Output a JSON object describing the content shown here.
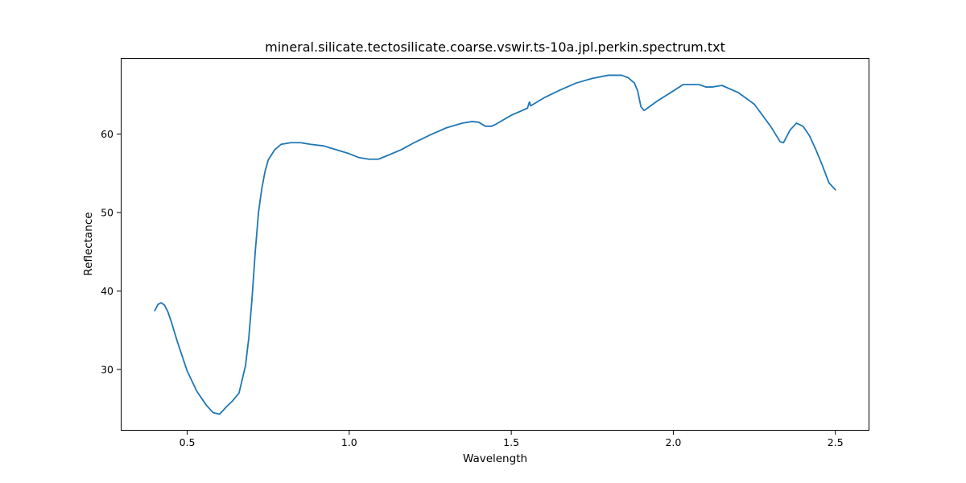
{
  "chart_data": {
    "type": "line",
    "title": "mineral.silicate.tectosilicate.coarse.vswir.ts-10a.jpl.perkin.spectrum.txt",
    "xlabel": "Wavelength",
    "ylabel": "Reflectance",
    "xlim": [
      0.295,
      2.605
    ],
    "ylim": [
      22.2,
      69.7
    ],
    "xticks": [
      0.5,
      1.0,
      1.5,
      2.0,
      2.5
    ],
    "xtick_labels": [
      "0.5",
      "1.0",
      "1.5",
      "2.0",
      "2.5"
    ],
    "yticks": [
      30,
      40,
      50,
      60
    ],
    "ytick_labels": [
      "30",
      "40",
      "50",
      "60"
    ],
    "grid": false,
    "legend": "none",
    "series": [
      {
        "color": "#1f77b4",
        "x": [
          0.4,
          0.41,
          0.42,
          0.43,
          0.44,
          0.45,
          0.47,
          0.5,
          0.53,
          0.56,
          0.58,
          0.6,
          0.62,
          0.64,
          0.66,
          0.68,
          0.69,
          0.7,
          0.71,
          0.72,
          0.73,
          0.74,
          0.75,
          0.77,
          0.79,
          0.82,
          0.85,
          0.88,
          0.92,
          0.96,
          1.0,
          1.03,
          1.06,
          1.09,
          1.12,
          1.16,
          1.2,
          1.25,
          1.3,
          1.35,
          1.38,
          1.4,
          1.42,
          1.44,
          1.45,
          1.5,
          1.55,
          1.556,
          1.56,
          1.6,
          1.65,
          1.7,
          1.75,
          1.8,
          1.84,
          1.86,
          1.88,
          1.89,
          1.9,
          1.91,
          1.92,
          1.95,
          2.0,
          2.03,
          2.05,
          2.08,
          2.1,
          2.12,
          2.15,
          2.2,
          2.25,
          2.3,
          2.33,
          2.34,
          2.36,
          2.38,
          2.4,
          2.42,
          2.44,
          2.46,
          2.48,
          2.5
        ],
        "y": [
          37.5,
          38.3,
          38.5,
          38.2,
          37.4,
          36.2,
          33.5,
          29.8,
          27.2,
          25.4,
          24.5,
          24.3,
          25.2,
          26.0,
          27.0,
          30.5,
          34.0,
          39.0,
          45.0,
          50.0,
          53.0,
          55.2,
          56.7,
          58.0,
          58.7,
          58.9,
          58.9,
          58.7,
          58.5,
          58.0,
          57.5,
          57.0,
          56.8,
          56.8,
          57.3,
          58.0,
          58.9,
          59.9,
          60.8,
          61.4,
          61.6,
          61.5,
          61.0,
          61.0,
          61.2,
          62.4,
          63.3,
          64.1,
          63.6,
          64.6,
          65.6,
          66.5,
          67.1,
          67.5,
          67.5,
          67.2,
          66.5,
          65.5,
          63.5,
          63.0,
          63.3,
          64.2,
          65.5,
          66.3,
          66.3,
          66.3,
          66.0,
          66.0,
          66.2,
          65.3,
          63.8,
          61.0,
          59.0,
          58.9,
          60.5,
          61.4,
          61.0,
          59.8,
          58.0,
          56.0,
          53.8,
          52.9
        ]
      }
    ]
  }
}
